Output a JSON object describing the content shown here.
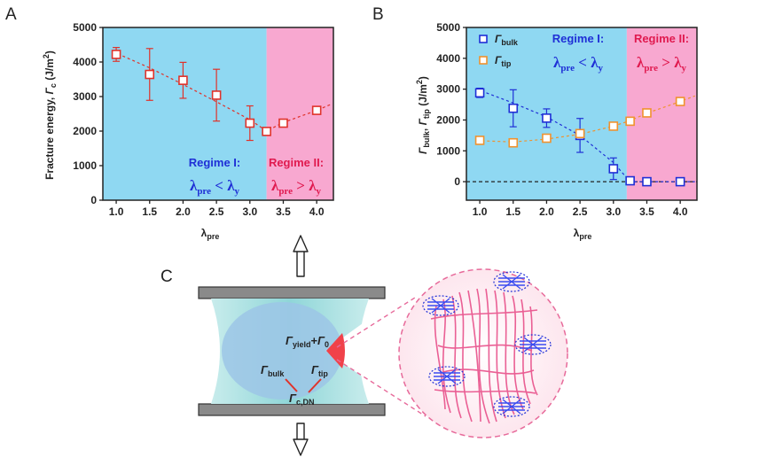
{
  "panels": {
    "A": "A",
    "B": "B",
    "C": "C"
  },
  "colors": {
    "regime1_bg": "#8fd8f2",
    "regime2_bg": "#f8a8d0",
    "red_series": "#e0322a",
    "blue_series": "#1f2fd6",
    "orange_series": "#f0922e",
    "regime1_text": "#1f2fd6",
    "regime2_text": "#e01a4f"
  },
  "chart_data": [
    {
      "type": "scatter",
      "panel": "A",
      "xlabel_main": "λ",
      "xlabel_sub": "pre",
      "ylabel_main": "Fracture energy, ",
      "ylabel_gamma": "Γ",
      "ylabel_sub": "c",
      "ylabel_unit": " (J/m",
      "ylabel_exp": "2",
      "ylabel_close": ")",
      "xlim": [
        0.8,
        4.25
      ],
      "ylim": [
        0,
        5000
      ],
      "xticks": [
        "1.0",
        "1.5",
        "2.0",
        "2.5",
        "3.0",
        "3.5",
        "4.0"
      ],
      "xtick_values": [
        1.0,
        1.5,
        2.0,
        2.5,
        3.0,
        3.5,
        4.0
      ],
      "yticks": [
        "0",
        "1000",
        "2000",
        "3000",
        "4000",
        "5000"
      ],
      "ytick_values": [
        0,
        1000,
        2000,
        3000,
        4000,
        5000
      ],
      "regime_boundary_x": 3.25,
      "series": [
        {
          "color": "#e0322a",
          "x": [
            1.0,
            1.5,
            2.0,
            2.5,
            3.0,
            3.25,
            3.5,
            4.0
          ],
          "y": [
            4220,
            3640,
            3470,
            3040,
            2230,
            1990,
            2230,
            2600
          ],
          "err": [
            200,
            750,
            520,
            750,
            500,
            0,
            0,
            0
          ]
        }
      ],
      "fit_line": {
        "x": [
          0.95,
          1.5,
          2.0,
          2.5,
          3.0,
          3.25,
          3.5,
          4.0,
          4.22
        ],
        "y": [
          4300,
          3830,
          3350,
          2850,
          2330,
          2000,
          2250,
          2600,
          2780
        ]
      },
      "regime1_title": "Regime I:",
      "regime2_title": "Regime II:",
      "regime1_formula": {
        "a": "λ",
        "a_sub": "pre",
        "op": " < ",
        "b": "λ",
        "b_sub": "y"
      },
      "regime2_formula": {
        "a": "λ",
        "a_sub": "pre",
        "op": " > ",
        "b": "λ",
        "b_sub": "y"
      }
    },
    {
      "type": "scatter",
      "panel": "B",
      "xlabel_main": "λ",
      "xlabel_sub": "pre",
      "ylabel_parts": [
        "Γ",
        "bulk",
        ", ",
        "Γ",
        "tip",
        " (J/m",
        "2",
        ")"
      ],
      "xlim": [
        0.8,
        4.25
      ],
      "ylim": [
        -600,
        5000
      ],
      "xticks": [
        "1.0",
        "1.5",
        "2.0",
        "2.5",
        "3.0",
        "3.5",
        "4.0"
      ],
      "xtick_values": [
        1.0,
        1.5,
        2.0,
        2.5,
        3.0,
        3.5,
        4.0
      ],
      "yticks": [
        "0",
        "1000",
        "2000",
        "3000",
        "4000",
        "5000"
      ],
      "ytick_values": [
        0,
        1000,
        2000,
        3000,
        4000,
        5000
      ],
      "regime_boundary_x": 3.2,
      "zero_line": 0,
      "series": [
        {
          "name_gamma": "Γ",
          "name_sub": "bulk",
          "color": "#1f2fd6",
          "x": [
            1.0,
            1.5,
            2.0,
            2.5,
            3.0,
            3.25,
            3.5,
            4.0
          ],
          "y": [
            2880,
            2380,
            2060,
            1500,
            420,
            30,
            0,
            0
          ],
          "err": [
            150,
            600,
            300,
            550,
            350,
            0,
            0,
            0
          ]
        },
        {
          "name_gamma": "Γ",
          "name_sub": "tip",
          "color": "#f0922e",
          "x": [
            1.0,
            1.5,
            2.0,
            2.5,
            3.0,
            3.25,
            3.5,
            4.0
          ],
          "y": [
            1340,
            1260,
            1410,
            1560,
            1800,
            1960,
            2230,
            2600
          ],
          "err": [
            0,
            0,
            0,
            0,
            0,
            0,
            0,
            0
          ]
        }
      ],
      "fit_lines": [
        {
          "color": "#1f2fd6",
          "x": [
            0.95,
            1.5,
            2.0,
            2.5,
            3.0,
            3.25,
            3.5,
            4.0,
            4.22
          ],
          "y": [
            3000,
            2550,
            2100,
            1500,
            620,
            0,
            0,
            0,
            0
          ]
        },
        {
          "color": "#f0922e",
          "x": [
            0.95,
            1.5,
            2.0,
            2.5,
            3.0,
            3.25,
            3.5,
            4.0,
            4.22
          ],
          "y": [
            1330,
            1290,
            1380,
            1540,
            1800,
            1980,
            2220,
            2600,
            2780
          ]
        }
      ],
      "regime1_title": "Regime I:",
      "regime2_title": "Regime II:",
      "regime1_formula": {
        "a": "λ",
        "a_sub": "pre",
        "op": " < ",
        "b": "λ",
        "b_sub": "y"
      },
      "regime2_formula": {
        "a": "λ",
        "a_sub": "pre",
        "op": " > ",
        "b": "λ",
        "b_sub": "y"
      }
    }
  ],
  "schematic": {
    "gamma_yield": "Γ",
    "gamma_yield_sub": "yield",
    "plus": "+",
    "gamma_0": "Γ",
    "gamma_0_sub": "0",
    "gamma_bulk": "Γ",
    "gamma_bulk_sub": "bulk",
    "gamma_tip": "Γ",
    "gamma_tip_sub": "tip",
    "gamma_cdn": "Γ",
    "gamma_cdn_sub": "c,DN"
  }
}
